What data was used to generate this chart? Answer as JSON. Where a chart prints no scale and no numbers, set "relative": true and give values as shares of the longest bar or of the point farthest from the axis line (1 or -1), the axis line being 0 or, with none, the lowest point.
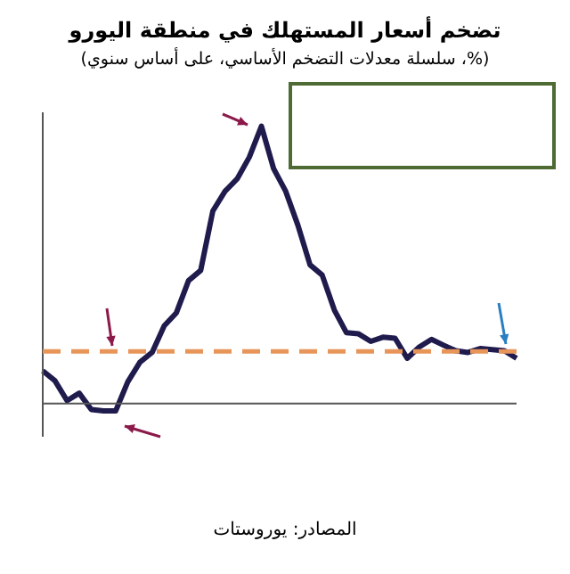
{
  "chart_data": {
    "type": "line",
    "title": "تضخم أسعار المستهلك في منطقة اليورو",
    "subtitle": "(%، سلسلة معدلات التضخم الأساسي، على أساس سنوي)",
    "relative": true,
    "categories": [
      null,
      null,
      null,
      null,
      null,
      null,
      null,
      null,
      null,
      null,
      null,
      null,
      null,
      null,
      null,
      null,
      null,
      null,
      null,
      null,
      null,
      null,
      null,
      null,
      null,
      null,
      null,
      null,
      null,
      null,
      null,
      null,
      null,
      null,
      null,
      null,
      null,
      null,
      null,
      null
    ],
    "series": [
      {
        "color": "#1f1b4d",
        "values": [
          0.118,
          0.082,
          0.01,
          0.037,
          -0.022,
          -0.027,
          -0.027,
          0.078,
          0.149,
          0.184,
          0.28,
          0.327,
          0.443,
          0.48,
          0.694,
          0.765,
          0.81,
          0.888,
          1.0,
          0.847,
          0.765,
          0.643,
          0.5,
          0.463,
          0.337,
          0.255,
          0.251,
          0.224,
          0.239,
          0.235,
          0.163,
          0.204,
          0.231,
          0.21,
          0.19,
          0.184,
          0.198,
          0.194,
          0.19,
          0.163
        ]
      }
    ],
    "ref_lines": [
      {
        "axis": "y",
        "value": 0.188,
        "color": "#e8955a",
        "line_style": "dashed"
      }
    ],
    "annotations": [
      "المصادر: يوروستات"
    ],
    "legend": false,
    "marker": "none",
    "line_style": "solid"
  }
}
